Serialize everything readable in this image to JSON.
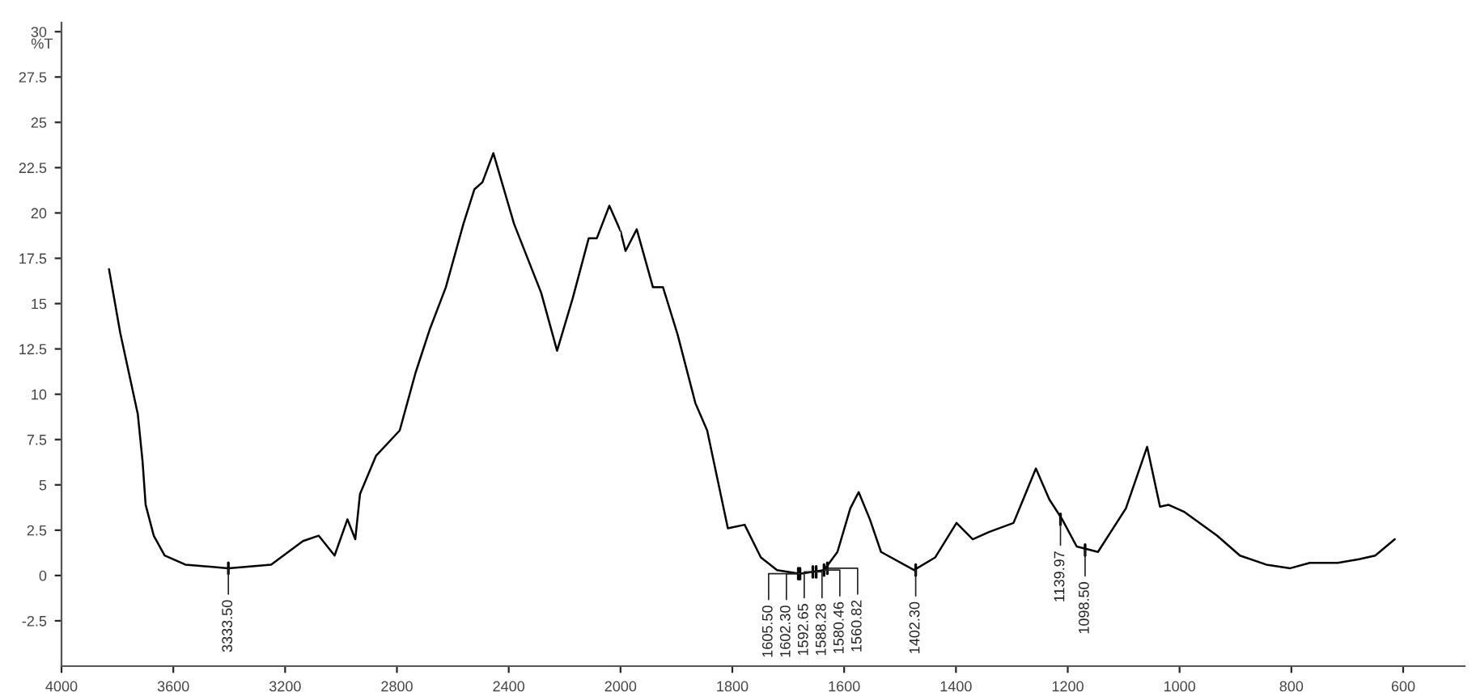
{
  "chart_data": [
    {
      "type": "line",
      "ylabel": "%T",
      "x": [
        3830,
        3790,
        3727,
        3710,
        3699,
        3670,
        3631,
        3557,
        3403,
        3250,
        3136,
        3080,
        3023,
        2977,
        2949,
        2932,
        2875,
        2790,
        2733,
        2682,
        2625,
        2562,
        2523,
        2494,
        2455,
        2381,
        2284,
        2227,
        2171,
        2114,
        2085,
        2040,
        2000
      ],
      "values": [
        16.9,
        13.4,
        8.9,
        6.3,
        3.9,
        2.2,
        1.1,
        0.6,
        0.4,
        0.6,
        1.9,
        2.2,
        1.1,
        3.1,
        2.0,
        4.5,
        6.6,
        8.0,
        11.2,
        13.6,
        15.9,
        19.4,
        21.3,
        21.7,
        23.3,
        19.4,
        15.6,
        12.4,
        15.3,
        18.6,
        18.6,
        20.4,
        19.0
      ],
      "color": "#000000",
      "xlim": [
        4000,
        2000
      ],
      "xticks": [
        4000,
        3600,
        3200,
        2800,
        2400,
        2000
      ],
      "ylim": [
        -5,
        30.5
      ],
      "yticks": [
        30,
        27.5,
        25,
        22.5,
        20,
        17.5,
        15,
        12.5,
        10,
        7.5,
        5,
        2.5,
        0,
        -2.5
      ],
      "annotations": [
        {
          "text": "3333.50",
          "x": 3403,
          "y": 0.4
        }
      ]
    },
    {
      "type": "line",
      "x": [
        2000,
        1991,
        1971,
        1942,
        1924,
        1898,
        1866,
        1845,
        1808,
        1778,
        1749,
        1720,
        1679,
        1636,
        1612,
        1589,
        1574,
        1554,
        1534,
        1475,
        1437,
        1399,
        1370,
        1341,
        1297,
        1257,
        1233,
        1210,
        1184,
        1146,
        1096,
        1058,
        1035,
        1020,
        991,
        933,
        892,
        845,
        802,
        767,
        717,
        679,
        650,
        615
      ],
      "values": [
        19.0,
        17.9,
        19.1,
        15.9,
        15.9,
        13.3,
        9.5,
        8.0,
        2.6,
        2.8,
        1.0,
        0.3,
        0.1,
        0.3,
        1.3,
        3.7,
        4.6,
        3.1,
        1.3,
        0.3,
        1.0,
        2.9,
        2.0,
        2.4,
        2.9,
        5.9,
        4.2,
        3.1,
        1.6,
        1.3,
        3.7,
        7.1,
        3.8,
        3.9,
        3.5,
        2.2,
        1.1,
        0.6,
        0.4,
        0.7,
        0.7,
        0.9,
        1.1,
        2.0
      ],
      "color": "#000000",
      "xlim": [
        2000,
        490
      ],
      "xticks": [
        1800,
        1600,
        1400,
        1200,
        1000,
        800,
        600
      ],
      "ylim": [
        -5,
        30.5
      ],
      "tick_labels": "x",
      "annotations": [
        {
          "text": "1605.50",
          "x": 1682,
          "y": 0.1
        },
        {
          "text": "1602.30",
          "x": 1679,
          "y": 0.1
        },
        {
          "text": "1592.65",
          "x": 1656,
          "y": 0.2
        },
        {
          "text": "1588.28",
          "x": 1650,
          "y": 0.2
        },
        {
          "text": "1580.46",
          "x": 1636,
          "y": 0.3
        },
        {
          "text": "1560.82",
          "x": 1630,
          "y": 0.4
        },
        {
          "text": "1402.30",
          "x": 1472,
          "y": 0.3
        },
        {
          "text": "1139.97",
          "x": 1213,
          "y": 3.1
        },
        {
          "text": "1098.50",
          "x": 1169,
          "y": 1.4
        }
      ]
    }
  ]
}
